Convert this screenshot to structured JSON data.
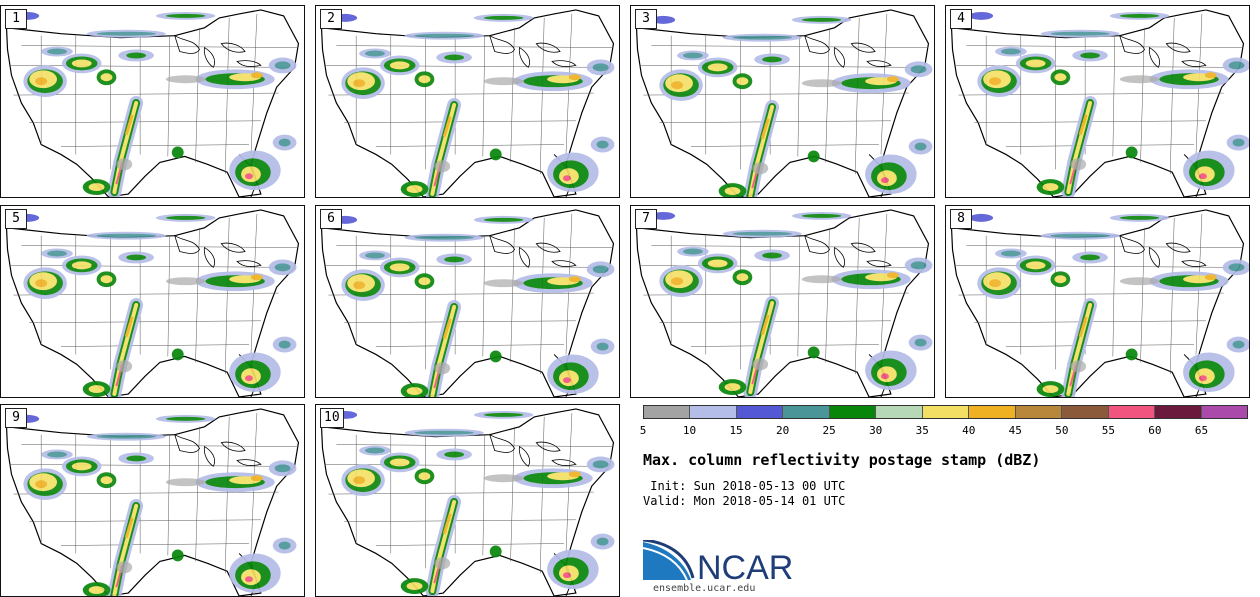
{
  "panels": [
    {
      "member": "1"
    },
    {
      "member": "2"
    },
    {
      "member": "3"
    },
    {
      "member": "4"
    },
    {
      "member": "5"
    },
    {
      "member": "6"
    },
    {
      "member": "7"
    },
    {
      "member": "8"
    },
    {
      "member": "9"
    },
    {
      "member": "10"
    }
  ],
  "colorbar": {
    "colors": [
      "#a3a3a3",
      "#b4bce8",
      "#5558d4",
      "#4a9598",
      "#08860a",
      "#b7d8b6",
      "#f3df64",
      "#efb121",
      "#b8873b",
      "#8a5a3a",
      "#f25480",
      "#6b1a3e",
      "#aa4aab"
    ],
    "tick_labels": [
      "5",
      "10",
      "15",
      "20",
      "25",
      "30",
      "35",
      "40",
      "45",
      "50",
      "55",
      "60",
      "65"
    ]
  },
  "title": "Max. column reflectivity postage stamp (dBZ)",
  "init": " Init: Sun 2018-05-13 00 UTC",
  "valid": "Valid: Mon 2018-05-14 01 UTC",
  "logo": {
    "text": "NCAR",
    "url": "ensemble.ucar.edu",
    "color": "#1f3e79"
  }
}
